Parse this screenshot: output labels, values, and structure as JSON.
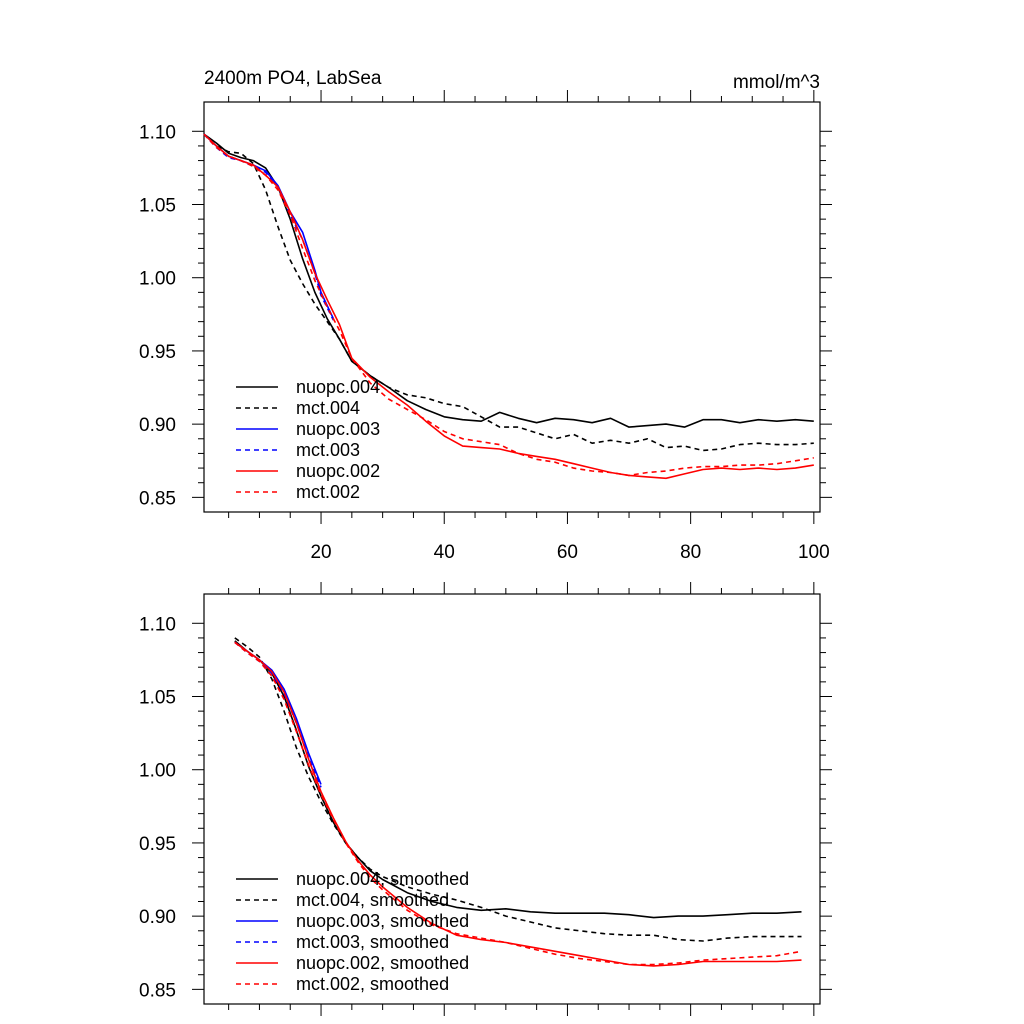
{
  "chart_data": [
    {
      "type": "line",
      "title": "2400m PO4, LabSea",
      "units": "mmol/m^3",
      "xlabel": "",
      "ylabel": "",
      "xlim": [
        1,
        101
      ],
      "ylim": [
        0.84,
        1.12
      ],
      "xticks": [
        20,
        40,
        60,
        80,
        100
      ],
      "xtick_labels": [
        "20",
        "40",
        "60",
        "80",
        "100"
      ],
      "yticks": [
        0.85,
        0.9,
        0.95,
        1.0,
        1.05,
        1.1
      ],
      "ytick_labels": [
        "0.85",
        "0.90",
        "0.95",
        "1.00",
        "1.05",
        "1.10"
      ],
      "legend_position": "bottom-left",
      "series": [
        {
          "name": "nuopc.004",
          "color": "#000000",
          "dash": "solid",
          "x": [
            1,
            3,
            5,
            7,
            9,
            11,
            13,
            15,
            17,
            19,
            21,
            23,
            25,
            28,
            31,
            34,
            37,
            40,
            43,
            46,
            49,
            52,
            55,
            58,
            61,
            64,
            67,
            70,
            73,
            76,
            79,
            82,
            85,
            88,
            91,
            94,
            97,
            100
          ],
          "y": [
            1.098,
            1.092,
            1.085,
            1.082,
            1.08,
            1.075,
            1.062,
            1.04,
            1.013,
            0.99,
            0.972,
            0.958,
            0.943,
            0.933,
            0.925,
            0.916,
            0.91,
            0.905,
            0.903,
            0.902,
            0.908,
            0.904,
            0.901,
            0.904,
            0.903,
            0.901,
            0.904,
            0.898,
            0.899,
            0.9,
            0.898,
            0.903,
            0.903,
            0.901,
            0.903,
            0.902,
            0.903,
            0.902
          ]
        },
        {
          "name": "mct.004",
          "color": "#000000",
          "dash": "dashed",
          "x": [
            1,
            3,
            5,
            7,
            9,
            11,
            13,
            15,
            17,
            19,
            21,
            23,
            25,
            28,
            31,
            34,
            37,
            40,
            43,
            46,
            49,
            52,
            55,
            58,
            61,
            64,
            67,
            70,
            73,
            76,
            79,
            82,
            85,
            88,
            91,
            94,
            97,
            100
          ],
          "y": [
            1.098,
            1.09,
            1.086,
            1.085,
            1.078,
            1.06,
            1.035,
            1.012,
            0.996,
            0.982,
            0.97,
            0.958,
            0.943,
            0.933,
            0.925,
            0.92,
            0.918,
            0.914,
            0.912,
            0.905,
            0.898,
            0.898,
            0.894,
            0.89,
            0.893,
            0.887,
            0.889,
            0.887,
            0.89,
            0.884,
            0.885,
            0.882,
            0.883,
            0.886,
            0.887,
            0.886,
            0.886,
            0.887
          ]
        },
        {
          "name": "nuopc.003",
          "color": "#0000ff",
          "dash": "solid",
          "x": [
            1,
            3,
            5,
            7,
            9,
            11,
            13,
            15,
            17,
            19,
            20,
            22
          ],
          "y": [
            1.098,
            1.09,
            1.083,
            1.08,
            1.077,
            1.073,
            1.063,
            1.045,
            1.031,
            1.005,
            0.99,
            0.972
          ]
        },
        {
          "name": "mct.003",
          "color": "#0000ff",
          "dash": "dashed",
          "x": [
            1,
            3,
            5,
            7,
            9,
            11,
            13,
            15,
            17,
            19,
            20,
            22
          ],
          "y": [
            1.098,
            1.089,
            1.082,
            1.08,
            1.076,
            1.072,
            1.062,
            1.043,
            1.026,
            1.003,
            0.988,
            0.971
          ]
        },
        {
          "name": "nuopc.002",
          "color": "#ff0000",
          "dash": "solid",
          "x": [
            1,
            3,
            5,
            7,
            9,
            11,
            13,
            15,
            17,
            19,
            21,
            23,
            25,
            28,
            31,
            34,
            37,
            40,
            43,
            46,
            49,
            52,
            55,
            58,
            61,
            64,
            67,
            70,
            73,
            76,
            79,
            82,
            85,
            88,
            91,
            94,
            97,
            100
          ],
          "y": [
            1.098,
            1.09,
            1.083,
            1.08,
            1.077,
            1.07,
            1.062,
            1.045,
            1.026,
            1.003,
            0.985,
            0.968,
            0.945,
            0.932,
            0.922,
            0.913,
            0.902,
            0.892,
            0.885,
            0.884,
            0.883,
            0.88,
            0.878,
            0.876,
            0.873,
            0.87,
            0.867,
            0.865,
            0.864,
            0.863,
            0.866,
            0.869,
            0.87,
            0.869,
            0.87,
            0.869,
            0.87,
            0.872
          ]
        },
        {
          "name": "mct.002",
          "color": "#ff0000",
          "dash": "dashed",
          "x": [
            1,
            3,
            5,
            7,
            9,
            11,
            13,
            15,
            17,
            19,
            21,
            23,
            25,
            28,
            31,
            34,
            37,
            40,
            43,
            46,
            49,
            52,
            55,
            58,
            61,
            64,
            67,
            70,
            73,
            76,
            79,
            82,
            85,
            88,
            91,
            94,
            97,
            100
          ],
          "y": [
            1.098,
            1.089,
            1.083,
            1.08,
            1.076,
            1.07,
            1.06,
            1.043,
            1.02,
            0.998,
            0.98,
            0.964,
            0.945,
            0.928,
            0.917,
            0.91,
            0.903,
            0.895,
            0.89,
            0.888,
            0.886,
            0.88,
            0.876,
            0.874,
            0.87,
            0.868,
            0.867,
            0.865,
            0.867,
            0.868,
            0.87,
            0.871,
            0.871,
            0.872,
            0.872,
            0.873,
            0.875,
            0.877
          ]
        }
      ]
    },
    {
      "type": "line",
      "title": "",
      "xlabel": "",
      "ylabel": "",
      "xlim": [
        1,
        101
      ],
      "ylim": [
        0.84,
        1.12
      ],
      "xticks": [
        20,
        40,
        60,
        80,
        100
      ],
      "yticks": [
        0.85,
        0.9,
        0.95,
        1.0,
        1.05,
        1.1
      ],
      "ytick_labels": [
        "0.85",
        "0.90",
        "0.95",
        "1.00",
        "1.05",
        "1.10"
      ],
      "legend_position": "bottom-left",
      "series": [
        {
          "name": "nuopc.004, smoothed",
          "color": "#000000",
          "dash": "solid",
          "x": [
            6,
            8,
            10,
            12,
            14,
            16,
            18,
            20,
            22,
            24,
            26,
            28,
            30,
            34,
            38,
            42,
            46,
            50,
            54,
            58,
            62,
            66,
            70,
            74,
            78,
            82,
            86,
            90,
            94,
            98
          ],
          "y": [
            1.088,
            1.081,
            1.075,
            1.066,
            1.05,
            1.027,
            1.002,
            0.982,
            0.964,
            0.95,
            0.94,
            0.931,
            0.925,
            0.916,
            0.91,
            0.906,
            0.904,
            0.905,
            0.903,
            0.902,
            0.902,
            0.902,
            0.901,
            0.899,
            0.9,
            0.9,
            0.901,
            0.902,
            0.902,
            0.903
          ]
        },
        {
          "name": "mct.004, smoothed",
          "color": "#000000",
          "dash": "dashed",
          "x": [
            6,
            8,
            10,
            12,
            14,
            16,
            18,
            20,
            22,
            24,
            26,
            28,
            30,
            34,
            38,
            42,
            46,
            50,
            54,
            58,
            62,
            66,
            70,
            74,
            78,
            82,
            86,
            90,
            94,
            98
          ],
          "y": [
            1.09,
            1.084,
            1.077,
            1.062,
            1.04,
            1.015,
            0.995,
            0.978,
            0.963,
            0.95,
            0.94,
            0.932,
            0.927,
            0.92,
            0.915,
            0.911,
            0.906,
            0.9,
            0.896,
            0.892,
            0.89,
            0.888,
            0.887,
            0.887,
            0.884,
            0.883,
            0.885,
            0.886,
            0.886,
            0.886
          ]
        },
        {
          "name": "nuopc.003, smoothed",
          "color": "#0000ff",
          "dash": "solid",
          "x": [
            6,
            8,
            10,
            12,
            14,
            16,
            18,
            20
          ],
          "y": [
            1.087,
            1.081,
            1.075,
            1.068,
            1.055,
            1.035,
            1.011,
            0.99
          ]
        },
        {
          "name": "mct.003, smoothed",
          "color": "#0000ff",
          "dash": "dashed",
          "x": [
            6,
            8,
            10,
            12,
            14,
            16,
            18,
            20
          ],
          "y": [
            1.087,
            1.08,
            1.074,
            1.066,
            1.052,
            1.032,
            1.008,
            0.988
          ]
        },
        {
          "name": "nuopc.002, smoothed",
          "color": "#ff0000",
          "dash": "solid",
          "x": [
            6,
            8,
            10,
            12,
            14,
            16,
            18,
            20,
            22,
            24,
            26,
            28,
            30,
            34,
            38,
            42,
            46,
            50,
            54,
            58,
            62,
            66,
            70,
            74,
            78,
            82,
            86,
            90,
            94,
            98
          ],
          "y": [
            1.087,
            1.081,
            1.075,
            1.067,
            1.053,
            1.032,
            1.007,
            0.985,
            0.967,
            0.951,
            0.938,
            0.928,
            0.92,
            0.906,
            0.895,
            0.887,
            0.884,
            0.882,
            0.879,
            0.876,
            0.873,
            0.87,
            0.867,
            0.866,
            0.867,
            0.869,
            0.869,
            0.869,
            0.869,
            0.87
          ]
        },
        {
          "name": "mct.002, smoothed",
          "color": "#ff0000",
          "dash": "dashed",
          "x": [
            6,
            8,
            10,
            12,
            14,
            16,
            18,
            20,
            22,
            24,
            26,
            28,
            30,
            34,
            38,
            42,
            46,
            50,
            54,
            58,
            62,
            66,
            70,
            74,
            78,
            82,
            86,
            90,
            94,
            98
          ],
          "y": [
            1.087,
            1.08,
            1.074,
            1.064,
            1.048,
            1.026,
            1.003,
            0.983,
            0.966,
            0.95,
            0.937,
            0.926,
            0.918,
            0.904,
            0.894,
            0.888,
            0.885,
            0.882,
            0.878,
            0.874,
            0.871,
            0.869,
            0.867,
            0.867,
            0.868,
            0.87,
            0.871,
            0.872,
            0.873,
            0.876
          ]
        }
      ]
    }
  ]
}
